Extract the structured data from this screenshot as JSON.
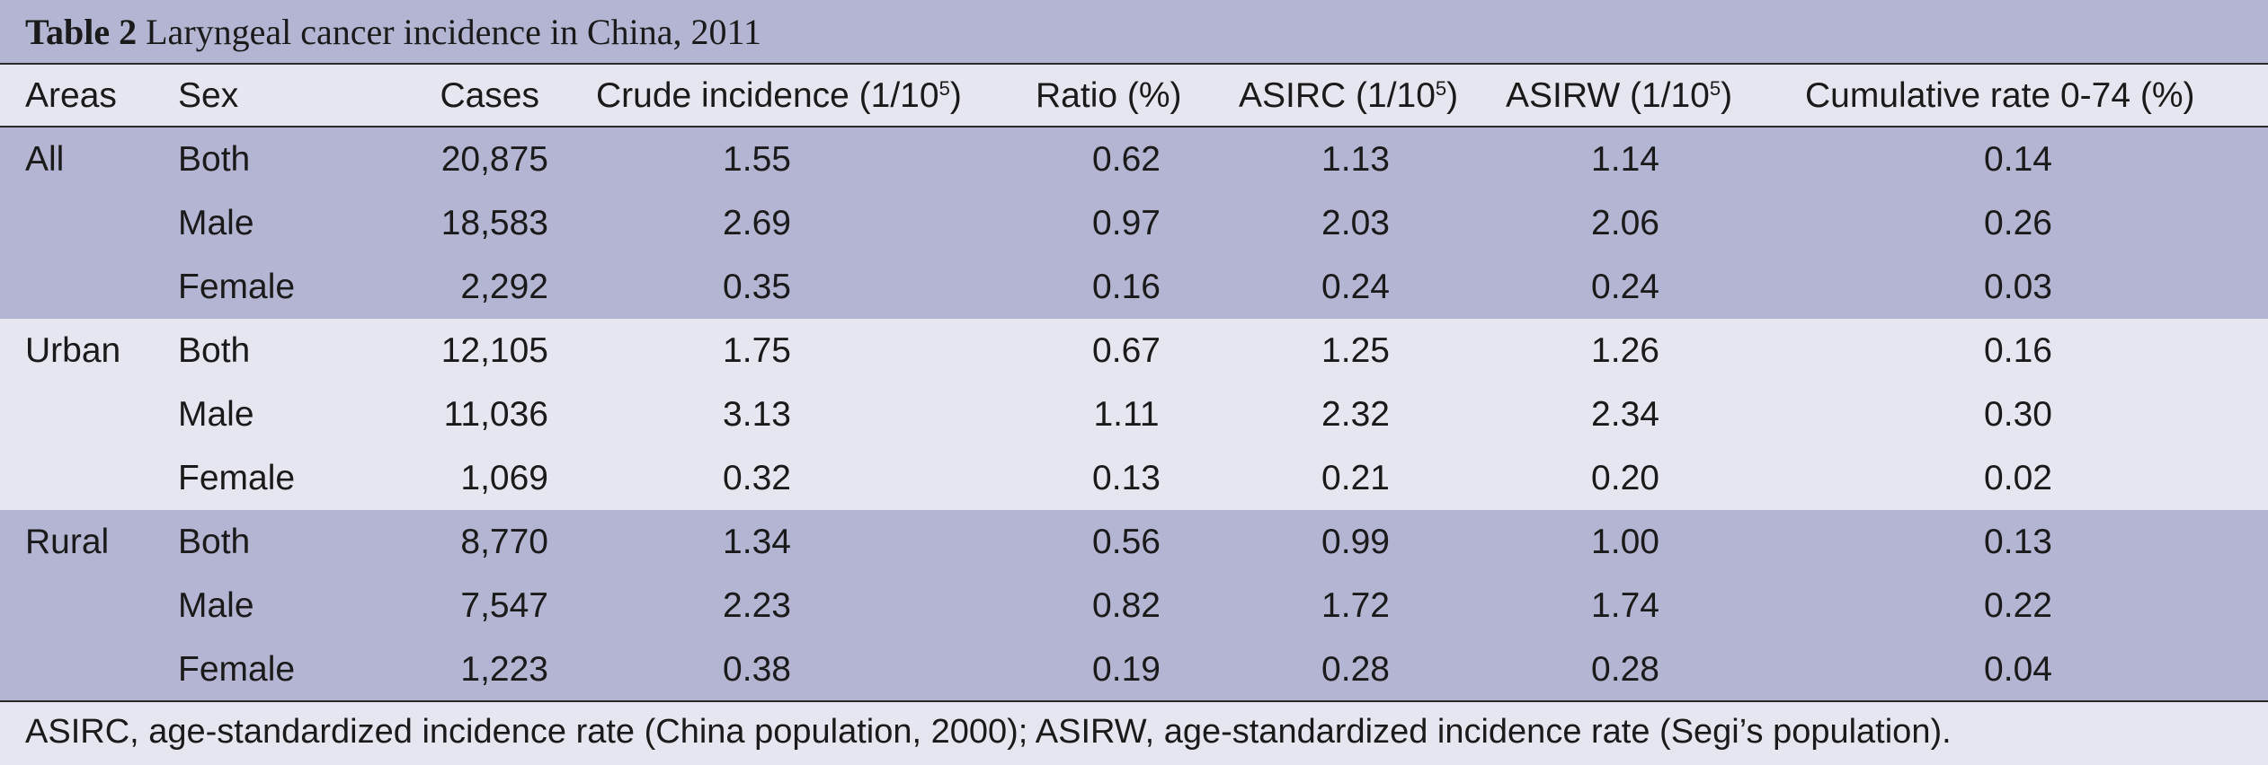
{
  "title": {
    "number": "Table 2",
    "text": " Laryngeal cancer incidence in China, 2011"
  },
  "headers": {
    "areas": "Areas",
    "sex": "Sex",
    "cases": "Cases",
    "crude": "Crude incidence (1/10",
    "crude_sup": "5",
    "crude_close": ")",
    "ratio": "Ratio (%)",
    "asirc": "ASIRC (1/10",
    "asirc_sup": "5",
    "asirc_close": ")",
    "asirw": "ASIRW (1/10",
    "asirw_sup": "5",
    "asirw_close": ")",
    "cumulative": "Cumulative rate 0-74 (%)"
  },
  "groups": [
    {
      "area": "All",
      "rows": [
        {
          "sex": "Both",
          "cases": "20,875",
          "crude": "1.55",
          "ratio": "0.62",
          "asirc": "1.13",
          "asirw": "1.14",
          "cum": "0.14"
        },
        {
          "sex": "Male",
          "cases": "18,583",
          "crude": "2.69",
          "ratio": "0.97",
          "asirc": "2.03",
          "asirw": "2.06",
          "cum": "0.26"
        },
        {
          "sex": "Female",
          "cases": "2,292",
          "crude": "0.35",
          "ratio": "0.16",
          "asirc": "0.24",
          "asirw": "0.24",
          "cum": "0.03"
        }
      ]
    },
    {
      "area": "Urban",
      "rows": [
        {
          "sex": "Both",
          "cases": "12,105",
          "crude": "1.75",
          "ratio": "0.67",
          "asirc": "1.25",
          "asirw": "1.26",
          "cum": "0.16"
        },
        {
          "sex": "Male",
          "cases": "11,036",
          "crude": "3.13",
          "ratio": "1.11",
          "asirc": "2.32",
          "asirw": "2.34",
          "cum": "0.30"
        },
        {
          "sex": "Female",
          "cases": "1,069",
          "crude": "0.32",
          "ratio": "0.13",
          "asirc": "0.21",
          "asirw": "0.20",
          "cum": "0.02"
        }
      ]
    },
    {
      "area": "Rural",
      "rows": [
        {
          "sex": "Both",
          "cases": "8,770",
          "crude": "1.34",
          "ratio": "0.56",
          "asirc": "0.99",
          "asirw": "1.00",
          "cum": "0.13"
        },
        {
          "sex": "Male",
          "cases": "7,547",
          "crude": "2.23",
          "ratio": "0.82",
          "asirc": "1.72",
          "asirw": "1.74",
          "cum": "0.22"
        },
        {
          "sex": "Female",
          "cases": "1,223",
          "crude": "0.38",
          "ratio": "0.19",
          "asirc": "0.28",
          "asirw": "0.28",
          "cum": "0.04"
        }
      ]
    }
  ],
  "footnote": "ASIRC, age-standardized incidence rate (China population, 2000); ASIRW, age-standardized incidence rate (Segi’s population).",
  "colors": {
    "band_dark": "#b3b5d2",
    "band_light": "#e6e6f0",
    "rule": "#2a2a2a"
  }
}
